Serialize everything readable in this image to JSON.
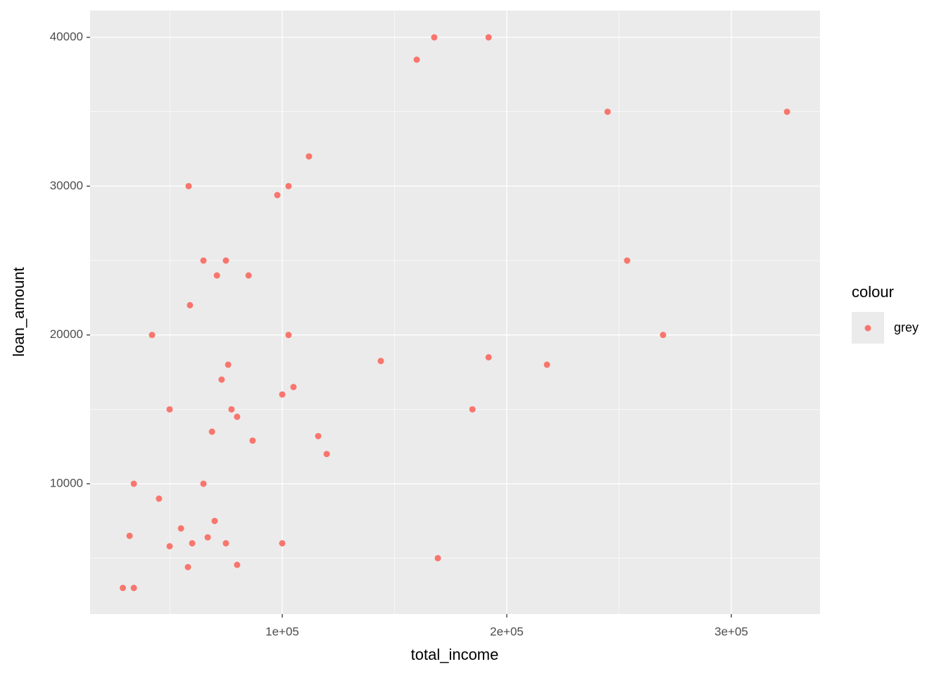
{
  "chart_data": {
    "type": "scatter",
    "x_label": "total_income",
    "y_label": "loan_amount",
    "legend_title": "colour",
    "legend": "right",
    "grid": true,
    "xlim": [
      14420,
      339500
    ],
    "ylim": [
      1245,
      41800
    ],
    "xticks": [
      {
        "value": 100000,
        "label": "1e+05"
      },
      {
        "value": 200000,
        "label": "2e+05"
      },
      {
        "value": 300000,
        "label": "3e+05"
      }
    ],
    "yticks": [
      10000,
      20000,
      30000,
      40000
    ],
    "series": [
      {
        "name": "grey",
        "color": "#F8766D",
        "x": [
          29000,
          33900,
          33900,
          32000,
          42000,
          45100,
          49850,
          49850,
          54900,
          58000,
          58300,
          58900,
          59900,
          64900,
          64900,
          66800,
          68700,
          69900,
          70900,
          73000,
          74900,
          74900,
          75900,
          77400,
          79900,
          79900,
          85000,
          86800,
          97800,
          100000,
          100000,
          102800,
          102800,
          105000,
          111900,
          116000,
          119800,
          143900,
          159900,
          167700,
          169300,
          184700,
          191900,
          191900,
          217900,
          244900,
          253600,
          269600,
          324800
        ],
        "values": [
          3000,
          3000,
          10000,
          6500,
          20000,
          9000,
          15000,
          5800,
          7000,
          4400,
          30000,
          22000,
          6000,
          25000,
          10000,
          6400,
          13500,
          7500,
          24000,
          17000,
          25000,
          6000,
          18000,
          15000,
          14500,
          4550,
          24000,
          12900,
          29400,
          16000,
          6000,
          30000,
          20000,
          16500,
          32000,
          13200,
          12000,
          18250,
          38500,
          40000,
          5000,
          15000,
          40000,
          18500,
          18000,
          35000,
          25000,
          20000,
          35000
        ]
      }
    ]
  }
}
